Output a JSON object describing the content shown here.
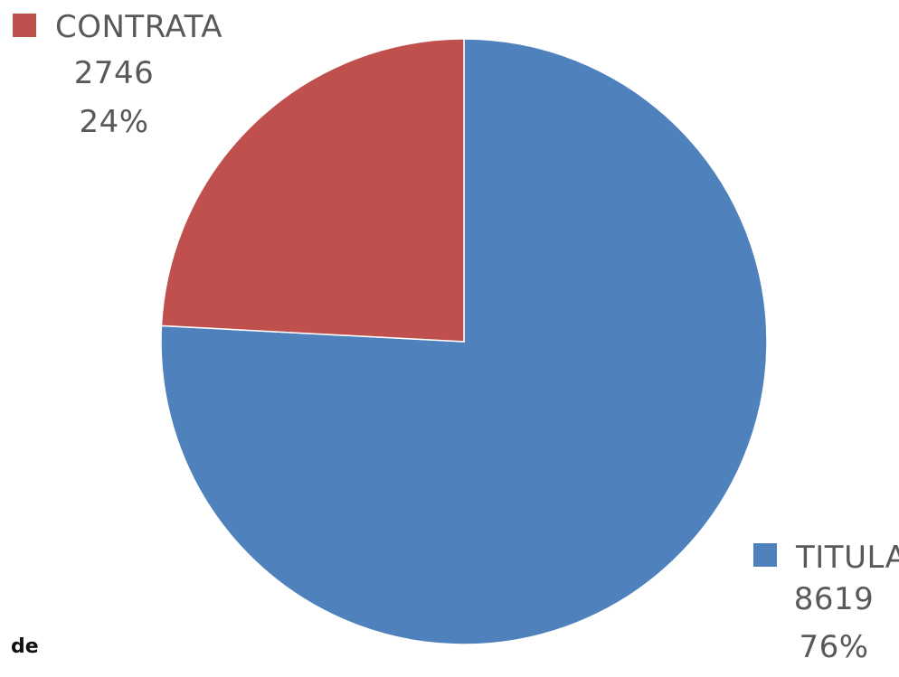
{
  "chart_data": {
    "type": "pie",
    "categories": [
      "TITULAR",
      "CONTRATA"
    ],
    "values": [
      8619,
      2746
    ],
    "percent_labels": [
      "76%",
      "24%"
    ],
    "colors": [
      "#4F81BD",
      "#C0504D"
    ],
    "value_labels_shown": true,
    "percent_labels_shown": true,
    "legend": "per-slice labels with color swatches"
  },
  "footer_text": "de"
}
